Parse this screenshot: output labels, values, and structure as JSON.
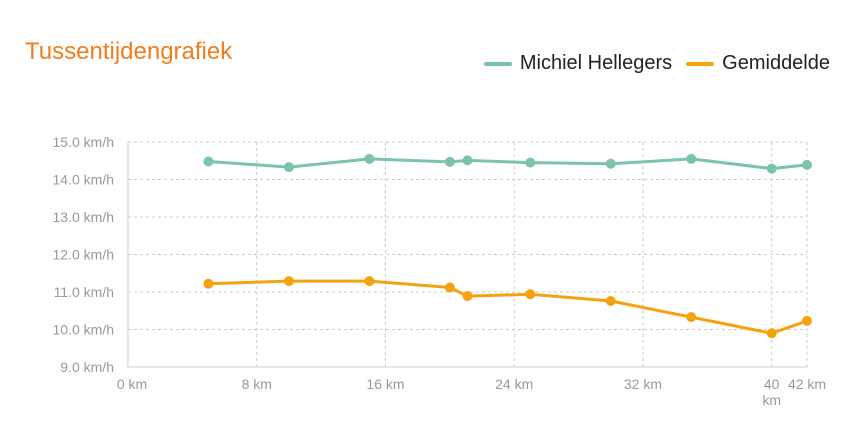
{
  "chart_data": {
    "type": "line",
    "title": "Tussentijdengrafiek",
    "y_ticks": [
      "9.0 km/h",
      "10.0 km/h",
      "11.0 km/h",
      "12.0 km/h",
      "13.0 km/h",
      "14.0 km/h",
      "15.0 km/h"
    ],
    "y_tick_values": [
      9,
      10,
      11,
      12,
      13,
      14,
      15
    ],
    "x_ticks": [
      {
        "value": 0,
        "lines": [
          "0 km"
        ]
      },
      {
        "value": 8,
        "lines": [
          "8 km"
        ]
      },
      {
        "value": 16,
        "lines": [
          "16 km"
        ]
      },
      {
        "value": 24,
        "lines": [
          "24 km"
        ]
      },
      {
        "value": 32,
        "lines": [
          "32 km"
        ]
      },
      {
        "value": 40,
        "lines": [
          "40",
          "km"
        ]
      },
      {
        "value": 42.195,
        "lines": [
          "42 km"
        ]
      }
    ],
    "xlim": [
      0,
      42.195
    ],
    "ylim": [
      9,
      15
    ],
    "grid": true,
    "legend_position": "top-right",
    "series": [
      {
        "name": "Michiel Hellegers",
        "color": "#7cc2b0",
        "x": [
          5,
          10,
          15,
          20,
          21.1,
          25,
          30,
          35,
          40,
          42.195
        ],
        "values": [
          14.48,
          14.33,
          14.55,
          14.47,
          14.51,
          14.45,
          14.42,
          14.55,
          14.29,
          14.39
        ]
      },
      {
        "name": "Gemiddelde",
        "color": "#f5a20f",
        "x": [
          5,
          10,
          15,
          20,
          21.1,
          25,
          30,
          35,
          40,
          42.195
        ],
        "values": [
          11.22,
          11.29,
          11.29,
          11.12,
          10.89,
          10.94,
          10.76,
          10.33,
          9.9,
          10.23
        ]
      }
    ]
  }
}
